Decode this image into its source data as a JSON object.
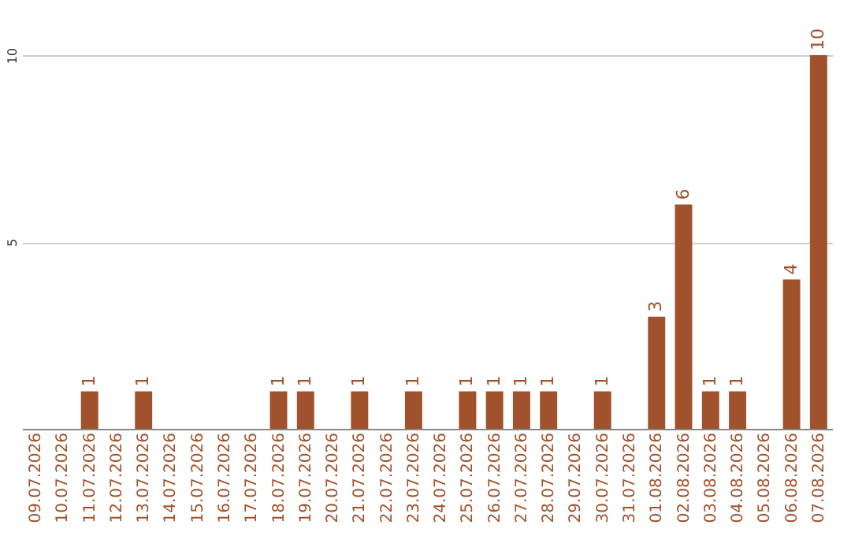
{
  "chart_data": {
    "type": "bar",
    "categories": [
      "09.07.2026",
      "10.07.2026",
      "11.07.2026",
      "12.07.2026",
      "13.07.2026",
      "14.07.2026",
      "15.07.2026",
      "16.07.2026",
      "17.07.2026",
      "18.07.2026",
      "19.07.2026",
      "20.07.2026",
      "21.07.2026",
      "22.07.2026",
      "23.07.2026",
      "24.07.2026",
      "25.07.2026",
      "26.07.2026",
      "27.07.2026",
      "28.07.2026",
      "29.07.2026",
      "30.07.2026",
      "31.07.2026",
      "01.08.2026",
      "02.08.2026",
      "03.08.2026",
      "04.08.2026",
      "05.08.2026",
      "06.08.2026",
      "07.08.2026"
    ],
    "values": [
      0,
      0,
      1,
      0,
      1,
      0,
      0,
      0,
      0,
      1,
      1,
      0,
      1,
      0,
      1,
      0,
      1,
      1,
      1,
      1,
      0,
      1,
      0,
      3,
      6,
      1,
      1,
      0,
      4,
      10
    ],
    "value_labels": [
      null,
      null,
      "1",
      null,
      "1",
      null,
      null,
      null,
      null,
      "1",
      "1",
      null,
      "1",
      null,
      "1",
      null,
      "1",
      "1",
      "1",
      "1",
      null,
      "1",
      null,
      "3",
      "6",
      "1",
      "1",
      null,
      "4",
      "10"
    ],
    "color": "#a0522d",
    "ylim": [
      0,
      10
    ],
    "yticks": [
      5,
      10
    ],
    "grid": "y"
  }
}
